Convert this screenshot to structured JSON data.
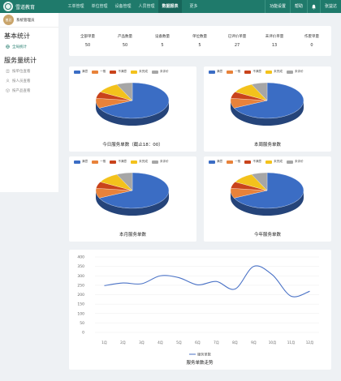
{
  "app": {
    "brand": "雪道教育"
  },
  "nav": {
    "items": [
      "工单管理",
      "单位管理",
      "设备管理",
      "人员管理",
      "数据报表",
      "更多"
    ],
    "active": 4
  },
  "topright": {
    "settings": "功能设置",
    "help": "帮助",
    "user": "张益达"
  },
  "sidebar": {
    "avatar_text": "曾总",
    "username": "系统管理员",
    "section1_title": "基本统计",
    "section1_items": [
      {
        "label": "全局统计",
        "icon": "globe-icon"
      }
    ],
    "section2_title": "服务量统计",
    "section2_items": [
      {
        "label": "按单位查看",
        "icon": "building-icon"
      },
      {
        "label": "按人员查看",
        "icon": "person-icon"
      },
      {
        "label": "按产品查看",
        "icon": "box-icon"
      }
    ]
  },
  "stats": [
    {
      "label": "全部单量",
      "value": "50"
    },
    {
      "label": "产品数量",
      "value": "50"
    },
    {
      "label": "设备数量",
      "value": "5"
    },
    {
      "label": "单位数量",
      "value": "5"
    },
    {
      "label": "已评价单量",
      "value": "27"
    },
    {
      "label": "未评价单量",
      "value": "13"
    },
    {
      "label": "作废单量",
      "value": "0"
    }
  ],
  "colors": {
    "great": "#3b6dc4",
    "ok": "#e8823a",
    "bad": "#c9431b",
    "unfinished": "#f3c21c",
    "unrated": "#a6a6a6",
    "line": "#4a72c6",
    "brand": "#1f7a6b"
  },
  "chart_data": [
    {
      "type": "pie",
      "title": "今日服务单数（截止18：00）",
      "legend": [
        "满意",
        "一般",
        "不满意",
        "未完成",
        "未评价"
      ],
      "legend_placement": "top",
      "values": [
        68,
        9,
        6,
        10,
        7
      ]
    },
    {
      "type": "pie",
      "title": "本周服务单数",
      "legend": [
        "满意",
        "一般",
        "不满意",
        "未完成",
        "未评价"
      ],
      "legend_placement": "top",
      "values": [
        68,
        9,
        6,
        10,
        7
      ]
    },
    {
      "type": "pie",
      "title": "本月服务单数",
      "legend": [
        "满意",
        "一般",
        "不满意",
        "未完成",
        "未评价"
      ],
      "legend_placement": "top",
      "values": [
        68,
        9,
        6,
        10,
        7
      ]
    },
    {
      "type": "pie",
      "title": "今年服务单数",
      "legend": [
        "满意",
        "一般",
        "不满意",
        "未完成",
        "未评价"
      ],
      "legend_placement": "top",
      "values": [
        68,
        9,
        6,
        10,
        7
      ]
    },
    {
      "type": "line",
      "title": "服务单数走势",
      "categories": [
        "1月",
        "2月",
        "3月",
        "4月",
        "5月",
        "6月",
        "7月",
        "8月",
        "9月",
        "10月",
        "11月",
        "12月"
      ],
      "series": [
        {
          "name": "服务单数",
          "values": [
            248,
            262,
            258,
            300,
            290,
            252,
            270,
            230,
            350,
            305,
            192,
            218
          ]
        }
      ],
      "ylim": [
        0,
        400
      ],
      "yticks": [
        "0",
        "50",
        "100",
        "150",
        "200",
        "250",
        "300",
        "350",
        "400"
      ],
      "legend_placement": "bottom",
      "grid": true
    }
  ]
}
